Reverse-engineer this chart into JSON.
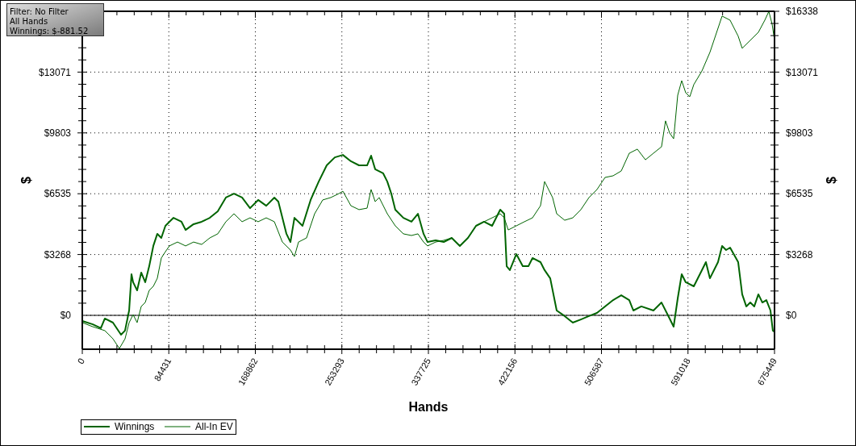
{
  "chart_data": {
    "type": "line",
    "xlabel": "Hands",
    "ylabel": "$",
    "y2label": "$",
    "annotations": [
      "Filter: No Filter",
      "All Hands",
      "Winnings: $-881.52"
    ],
    "xlim": [
      0,
      675449
    ],
    "xticks": [
      0,
      84431,
      168862,
      253293,
      337725,
      422156,
      506587,
      591018,
      675449
    ],
    "ylim": [
      -1820,
      16338
    ],
    "yticks": [
      {
        "value": 0,
        "label": "$0"
      },
      {
        "value": 3268,
        "label": "$3268"
      },
      {
        "value": 6535,
        "label": "$6535"
      },
      {
        "value": 9803,
        "label": "$9803"
      },
      {
        "value": 13071,
        "label": "$13071"
      },
      {
        "value": 16338,
        "label": null
      }
    ],
    "y2lim": [
      -1820,
      16338
    ],
    "y2ticks": [
      {
        "value": 0,
        "label": "$0"
      },
      {
        "value": 3268,
        "label": "$3268"
      },
      {
        "value": 6535,
        "label": "$6535"
      },
      {
        "value": 9803,
        "label": "$9803"
      },
      {
        "value": 13071,
        "label": "$13071"
      },
      {
        "value": 16338,
        "label": "$16338"
      }
    ],
    "grid": true,
    "legend": "bottom left",
    "marker": "none",
    "line_style": "solid",
    "ref_lines": [
      {
        "axis": "y",
        "value": 0,
        "color": "#000000"
      }
    ],
    "series": [
      {
        "name": "Winnings",
        "color": "#006400",
        "x": [
          0,
          10200,
          18100,
          22000,
          29900,
          37800,
          41700,
          45700,
          48000,
          49600,
          53500,
          57500,
          61400,
          65300,
          69300,
          73200,
          77100,
          81100,
          85000,
          89000,
          96800,
          100800,
          108600,
          116500,
          124400,
          132200,
          140100,
          148000,
          155900,
          163700,
          171600,
          179500,
          187400,
          191300,
          199200,
          203100,
          207000,
          214900,
          222800,
          230700,
          238500,
          246400,
          254300,
          262100,
          270000,
          277900,
          281800,
          285800,
          293600,
          297600,
          301500,
          305400,
          313300,
          321200,
          327500,
          333000,
          336900,
          344800,
          352700,
          360500,
          368400,
          376300,
          384200,
          392000,
          399900,
          407800,
          411700,
          414100,
          417200,
          423500,
          429800,
          435300,
          439300,
          447100,
          451100,
          456600,
          462900,
          470700,
          478600,
          486500,
          494400,
          502200,
          510100,
          518000,
          525900,
          533700,
          537700,
          545500,
          557300,
          565200,
          573100,
          577000,
          581000,
          584900,
          588800,
          596700,
          604600,
          608500,
          612400,
          620300,
          624300,
          628200,
          632100,
          640000,
          643900,
          647900,
          651800,
          655700,
          659700,
          663600,
          667500,
          671500,
          673800,
          675449
        ],
        "values": [
          -300,
          -480,
          -690,
          -170,
          -390,
          -1040,
          -820,
          260,
          2210,
          1780,
          1340,
          2300,
          1780,
          2640,
          3730,
          4380,
          4160,
          4810,
          5030,
          5240,
          5030,
          4590,
          4900,
          5030,
          5240,
          5590,
          6330,
          6540,
          6330,
          5760,
          6200,
          5890,
          6330,
          6110,
          4380,
          3940,
          5240,
          4810,
          6200,
          7190,
          8060,
          8490,
          8620,
          8280,
          8060,
          8060,
          8580,
          7850,
          7630,
          7190,
          6540,
          5680,
          5240,
          5030,
          5460,
          4380,
          3940,
          4030,
          3940,
          4160,
          3730,
          4160,
          4810,
          5030,
          4810,
          5680,
          5460,
          2640,
          2430,
          3290,
          2640,
          2640,
          3080,
          2860,
          2430,
          1990,
          260,
          -40,
          -390,
          -220,
          -40,
          130,
          480,
          820,
          1080,
          820,
          260,
          480,
          260,
          690,
          -170,
          -610,
          910,
          2210,
          1780,
          1560,
          2430,
          2860,
          1990,
          2860,
          3730,
          3510,
          3640,
          2860,
          1130,
          480,
          690,
          480,
          1130,
          690,
          820,
          260,
          -820,
          -880
        ]
      },
      {
        "name": "All-In EV",
        "color": "#006400",
        "x": [
          0,
          10200,
          22000,
          29900,
          36200,
          41700,
          45700,
          49600,
          53500,
          57500,
          61400,
          65300,
          69300,
          73200,
          77100,
          81100,
          85000,
          92900,
          100800,
          108600,
          116500,
          124400,
          132200,
          140100,
          148000,
          155900,
          163700,
          171600,
          179500,
          187400,
          195200,
          203100,
          207000,
          211000,
          218800,
          226700,
          234600,
          242500,
          250300,
          254300,
          262100,
          270000,
          277900,
          281800,
          285800,
          289700,
          297600,
          305400,
          313300,
          321200,
          327500,
          333000,
          336900,
          344800,
          352700,
          360500,
          368400,
          376300,
          384200,
          392000,
          399900,
          407800,
          411700,
          415600,
          423500,
          431400,
          439300,
          447100,
          451100,
          455000,
          458900,
          462900,
          470700,
          478600,
          486500,
          494400,
          502200,
          510100,
          518000,
          525900,
          533700,
          541600,
          549500,
          557300,
          565200,
          569100,
          573100,
          577000,
          581000,
          584900,
          588800,
          592800,
          596700,
          604600,
          612400,
          624300,
          632100,
          640000,
          643900,
          651800,
          659700,
          666000,
          669900,
          673100,
          675449
        ],
        "values": [
          -390,
          -610,
          -820,
          -1260,
          -1780,
          -1260,
          -390,
          40,
          -390,
          480,
          690,
          1340,
          1560,
          1990,
          3080,
          3420,
          3730,
          3940,
          3730,
          3940,
          3810,
          4160,
          4380,
          5030,
          5460,
          5030,
          5240,
          5030,
          5240,
          5030,
          3940,
          3510,
          3160,
          3940,
          4160,
          5460,
          6200,
          6330,
          6540,
          6670,
          5890,
          5680,
          5760,
          6760,
          6110,
          6330,
          5460,
          4810,
          4380,
          4290,
          4380,
          3940,
          3730,
          3940,
          4030,
          4160,
          3730,
          4160,
          4810,
          5030,
          5240,
          5460,
          5240,
          4590,
          4810,
          5030,
          5240,
          5890,
          7190,
          6760,
          6330,
          5460,
          5110,
          5240,
          5680,
          6330,
          6760,
          7410,
          7500,
          7760,
          8710,
          8930,
          8360,
          8710,
          9060,
          10450,
          9800,
          9490,
          11830,
          12610,
          11960,
          11750,
          12400,
          13130,
          14130,
          16080,
          15860,
          15000,
          14350,
          14780,
          15210,
          15860,
          16330,
          15650,
          14780
        ]
      }
    ]
  }
}
